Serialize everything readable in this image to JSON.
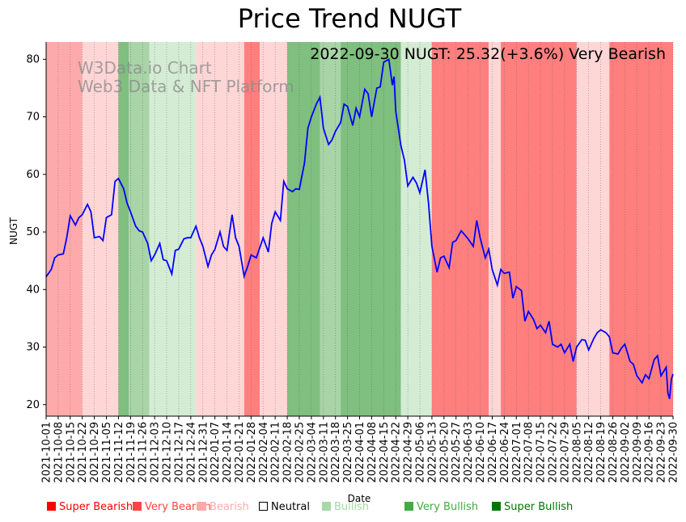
{
  "chart_data": {
    "type": "line",
    "title": "Price Trend NUGT",
    "annotation": "2022-09-30 NUGT: 25.32(+3.6%) Very Bearish",
    "watermark": [
      "W3Data.io Chart",
      "Web3 Data & NFT Platform"
    ],
    "xlabel": "Date",
    "ylabel": "NUGT",
    "ylim": [
      18,
      83
    ],
    "yticks": [
      20,
      30,
      40,
      50,
      60,
      70,
      80
    ],
    "x_range": [
      "2021-10-01",
      "2022-09-30"
    ],
    "xticks": [
      "2021-10-01",
      "2021-10-08",
      "2021-10-15",
      "2021-10-22",
      "2021-10-29",
      "2021-11-05",
      "2021-11-12",
      "2021-11-19",
      "2021-11-26",
      "2021-12-03",
      "2021-12-10",
      "2021-12-17",
      "2021-12-24",
      "2021-12-31",
      "2022-01-07",
      "2022-01-14",
      "2022-01-21",
      "2022-01-28",
      "2022-02-04",
      "2022-02-11",
      "2022-02-18",
      "2022-02-25",
      "2022-03-04",
      "2022-03-11",
      "2022-03-18",
      "2022-03-25",
      "2022-04-01",
      "2022-04-08",
      "2022-04-15",
      "2022-04-22",
      "2022-04-29",
      "2022-05-06",
      "2022-05-13",
      "2022-05-20",
      "2022-05-27",
      "2022-06-03",
      "2022-06-10",
      "2022-06-17",
      "2022-06-24",
      "2022-07-01",
      "2022-07-08",
      "2022-07-15",
      "2022-07-22",
      "2022-07-29",
      "2022-08-05",
      "2022-08-12",
      "2022-08-19",
      "2022-08-26",
      "2022-09-02",
      "2022-09-09",
      "2022-09-16",
      "2022-09-23",
      "2022-09-30"
    ],
    "series": [
      {
        "name": "NUGT",
        "color": "#0000ff",
        "points": [
          [
            "2021-10-01",
            42.2
          ],
          [
            "2021-10-04",
            43.5
          ],
          [
            "2021-10-06",
            45.5
          ],
          [
            "2021-10-08",
            46.0
          ],
          [
            "2021-10-11",
            46.2
          ],
          [
            "2021-10-13",
            49.0
          ],
          [
            "2021-10-15",
            52.8
          ],
          [
            "2021-10-18",
            51.2
          ],
          [
            "2021-10-20",
            52.5
          ],
          [
            "2021-10-22",
            53.0
          ],
          [
            "2021-10-25",
            54.8
          ],
          [
            "2021-10-27",
            53.5
          ],
          [
            "2021-10-29",
            49.0
          ],
          [
            "2021-11-01",
            49.2
          ],
          [
            "2021-11-03",
            48.5
          ],
          [
            "2021-11-05",
            52.5
          ],
          [
            "2021-11-08",
            53.0
          ],
          [
            "2021-11-10",
            58.8
          ],
          [
            "2021-11-12",
            59.3
          ],
          [
            "2021-11-15",
            57.5
          ],
          [
            "2021-11-17",
            55.0
          ],
          [
            "2021-11-19",
            53.5
          ],
          [
            "2021-11-22",
            51.0
          ],
          [
            "2021-11-24",
            50.2
          ],
          [
            "2021-11-26",
            50.0
          ],
          [
            "2021-11-29",
            48.0
          ],
          [
            "2021-12-01",
            45.0
          ],
          [
            "2021-12-03",
            46.0
          ],
          [
            "2021-12-06",
            48.0
          ],
          [
            "2021-12-08",
            45.2
          ],
          [
            "2021-12-10",
            45.0
          ],
          [
            "2021-12-13",
            42.7
          ],
          [
            "2021-12-15",
            46.8
          ],
          [
            "2021-12-17",
            47.0
          ],
          [
            "2021-12-20",
            48.8
          ],
          [
            "2021-12-22",
            49.0
          ],
          [
            "2021-12-24",
            49.0
          ],
          [
            "2021-12-27",
            51.0
          ],
          [
            "2021-12-29",
            49.0
          ],
          [
            "2021-12-31",
            47.5
          ],
          [
            "2022-01-03",
            44.0
          ],
          [
            "2022-01-05",
            46.0
          ],
          [
            "2022-01-07",
            47.0
          ],
          [
            "2022-01-10",
            50.0
          ],
          [
            "2022-01-12",
            47.5
          ],
          [
            "2022-01-14",
            46.8
          ],
          [
            "2022-01-17",
            53.0
          ],
          [
            "2022-01-19",
            49.0
          ],
          [
            "2022-01-21",
            47.5
          ],
          [
            "2022-01-24",
            42.3
          ],
          [
            "2022-01-26",
            44.0
          ],
          [
            "2022-01-28",
            46.0
          ],
          [
            "2022-01-31",
            45.5
          ],
          [
            "2022-02-02",
            47.2
          ],
          [
            "2022-02-04",
            49.0
          ],
          [
            "2022-02-07",
            46.5
          ],
          [
            "2022-02-09",
            51.5
          ],
          [
            "2022-02-11",
            53.5
          ],
          [
            "2022-02-14",
            52.0
          ],
          [
            "2022-02-16",
            58.8
          ],
          [
            "2022-02-18",
            57.5
          ],
          [
            "2022-02-21",
            57.0
          ],
          [
            "2022-02-23",
            57.5
          ],
          [
            "2022-02-25",
            57.4
          ],
          [
            "2022-02-28",
            62.0
          ],
          [
            "2022-03-02",
            68.0
          ],
          [
            "2022-03-04",
            70.0
          ],
          [
            "2022-03-07",
            72.3
          ],
          [
            "2022-03-09",
            73.4
          ],
          [
            "2022-03-11",
            68.0
          ],
          [
            "2022-03-14",
            65.2
          ],
          [
            "2022-03-16",
            66.0
          ],
          [
            "2022-03-18",
            67.5
          ],
          [
            "2022-03-21",
            69.0
          ],
          [
            "2022-03-23",
            72.2
          ],
          [
            "2022-03-25",
            71.8
          ],
          [
            "2022-03-28",
            68.5
          ],
          [
            "2022-03-30",
            71.5
          ],
          [
            "2022-04-01",
            70.0
          ],
          [
            "2022-04-04",
            74.8
          ],
          [
            "2022-04-06",
            74.0
          ],
          [
            "2022-04-08",
            70.0
          ],
          [
            "2022-04-11",
            75.0
          ],
          [
            "2022-04-13",
            75.2
          ],
          [
            "2022-04-15",
            79.5
          ],
          [
            "2022-04-18",
            80.0
          ],
          [
            "2022-04-20",
            75.5
          ],
          [
            "2022-04-21",
            77.0
          ],
          [
            "2022-04-22",
            71.0
          ],
          [
            "2022-04-25",
            65.0
          ],
          [
            "2022-04-27",
            62.5
          ],
          [
            "2022-04-29",
            58.0
          ],
          [
            "2022-05-02",
            59.5
          ],
          [
            "2022-05-04",
            58.5
          ],
          [
            "2022-05-06",
            56.8
          ],
          [
            "2022-05-09",
            60.8
          ],
          [
            "2022-05-11",
            55.0
          ],
          [
            "2022-05-13",
            47.5
          ],
          [
            "2022-05-16",
            43.0
          ],
          [
            "2022-05-18",
            45.5
          ],
          [
            "2022-05-20",
            45.8
          ],
          [
            "2022-05-23",
            43.8
          ],
          [
            "2022-05-25",
            48.2
          ],
          [
            "2022-05-27",
            48.5
          ],
          [
            "2022-05-30",
            50.2
          ],
          [
            "2022-06-01",
            49.5
          ],
          [
            "2022-06-03",
            48.8
          ],
          [
            "2022-06-06",
            47.5
          ],
          [
            "2022-06-08",
            52.0
          ],
          [
            "2022-06-10",
            49.0
          ],
          [
            "2022-06-13",
            45.5
          ],
          [
            "2022-06-15",
            47.0
          ],
          [
            "2022-06-17",
            43.5
          ],
          [
            "2022-06-20",
            40.8
          ],
          [
            "2022-06-22",
            43.5
          ],
          [
            "2022-06-24",
            42.8
          ],
          [
            "2022-06-27",
            43.0
          ],
          [
            "2022-06-29",
            38.5
          ],
          [
            "2022-07-01",
            40.5
          ],
          [
            "2022-07-04",
            39.8
          ],
          [
            "2022-07-06",
            34.5
          ],
          [
            "2022-07-08",
            36.2
          ],
          [
            "2022-07-11",
            34.8
          ],
          [
            "2022-07-13",
            33.2
          ],
          [
            "2022-07-15",
            33.8
          ],
          [
            "2022-07-18",
            32.5
          ],
          [
            "2022-07-20",
            34.5
          ],
          [
            "2022-07-22",
            30.5
          ],
          [
            "2022-07-25",
            30.0
          ],
          [
            "2022-07-27",
            30.5
          ],
          [
            "2022-07-29",
            29.0
          ],
          [
            "2022-08-01",
            30.5
          ],
          [
            "2022-08-03",
            27.5
          ],
          [
            "2022-08-05",
            30.0
          ],
          [
            "2022-08-08",
            31.3
          ],
          [
            "2022-08-10",
            31.2
          ],
          [
            "2022-08-12",
            29.5
          ],
          [
            "2022-08-15",
            31.5
          ],
          [
            "2022-08-17",
            32.5
          ],
          [
            "2022-08-19",
            33.0
          ],
          [
            "2022-08-22",
            32.5
          ],
          [
            "2022-08-24",
            31.8
          ],
          [
            "2022-08-26",
            29.0
          ],
          [
            "2022-08-29",
            28.8
          ],
          [
            "2022-08-31",
            29.8
          ],
          [
            "2022-09-02",
            30.5
          ],
          [
            "2022-09-05",
            27.5
          ],
          [
            "2022-09-07",
            27.0
          ],
          [
            "2022-09-09",
            25.0
          ],
          [
            "2022-09-12",
            23.8
          ],
          [
            "2022-09-14",
            25.2
          ],
          [
            "2022-09-16",
            24.5
          ],
          [
            "2022-09-19",
            27.8
          ],
          [
            "2022-09-21",
            28.5
          ],
          [
            "2022-09-23",
            25.0
          ],
          [
            "2022-09-26",
            26.5
          ],
          [
            "2022-09-27",
            22.0
          ],
          [
            "2022-09-28",
            21.0
          ],
          [
            "2022-09-29",
            24.4
          ],
          [
            "2022-09-30",
            25.32
          ]
        ]
      }
    ],
    "regimes": [
      [
        "2021-10-01",
        "2021-10-22",
        "bearish"
      ],
      [
        "2021-10-22",
        "2021-11-12",
        "bearish-light"
      ],
      [
        "2021-11-12",
        "2021-11-18",
        "very-bullish"
      ],
      [
        "2021-11-18",
        "2021-11-30",
        "bullish"
      ],
      [
        "2021-11-30",
        "2021-12-27",
        "bullish-light"
      ],
      [
        "2021-12-27",
        "2022-01-24",
        "bearish-light"
      ],
      [
        "2022-01-24",
        "2022-02-02",
        "very-bearish"
      ],
      [
        "2022-02-02",
        "2022-02-18",
        "bearish-light"
      ],
      [
        "2022-02-18",
        "2022-03-09",
        "very-bullish"
      ],
      [
        "2022-03-09",
        "2022-03-21",
        "bullish"
      ],
      [
        "2022-03-21",
        "2022-04-25",
        "very-bullish"
      ],
      [
        "2022-04-25",
        "2022-05-13",
        "bullish-light"
      ],
      [
        "2022-05-13",
        "2022-06-15",
        "very-bearish"
      ],
      [
        "2022-06-15",
        "2022-06-22",
        "bearish-light"
      ],
      [
        "2022-06-22",
        "2022-08-05",
        "very-bearish"
      ],
      [
        "2022-08-05",
        "2022-08-24",
        "bearish-light"
      ],
      [
        "2022-08-24",
        "2022-09-30",
        "very-bearish"
      ]
    ],
    "legend": [
      {
        "label": "Super Bearish",
        "color": "#ff0000",
        "text_color": "#ff0000"
      },
      {
        "label": "Very Bearish",
        "color": "#ff4444",
        "text_color": "#ff4444"
      },
      {
        "label": "Bearish",
        "color": "#ffaaaa",
        "text_color": "#ffaaaa"
      },
      {
        "label": "Neutral",
        "color": "#ffffff",
        "text_color": "#000000"
      },
      {
        "label": "Bullish",
        "color": "#a8d8a8",
        "text_color": "#a8d8a8"
      },
      {
        "label": "Very Bullish",
        "color": "#44aa44",
        "text_color": "#44aa44"
      },
      {
        "label": "Super Bullish",
        "color": "#007700",
        "text_color": "#007700"
      }
    ],
    "regime_colors": {
      "very-bearish": "#ff7f7f",
      "bearish": "#ffaaaa",
      "bearish-light": "#ffd6d6",
      "bullish-light": "#d4ecd4",
      "bullish": "#a8d4a8",
      "very-bullish": "#7fbf7f"
    }
  }
}
